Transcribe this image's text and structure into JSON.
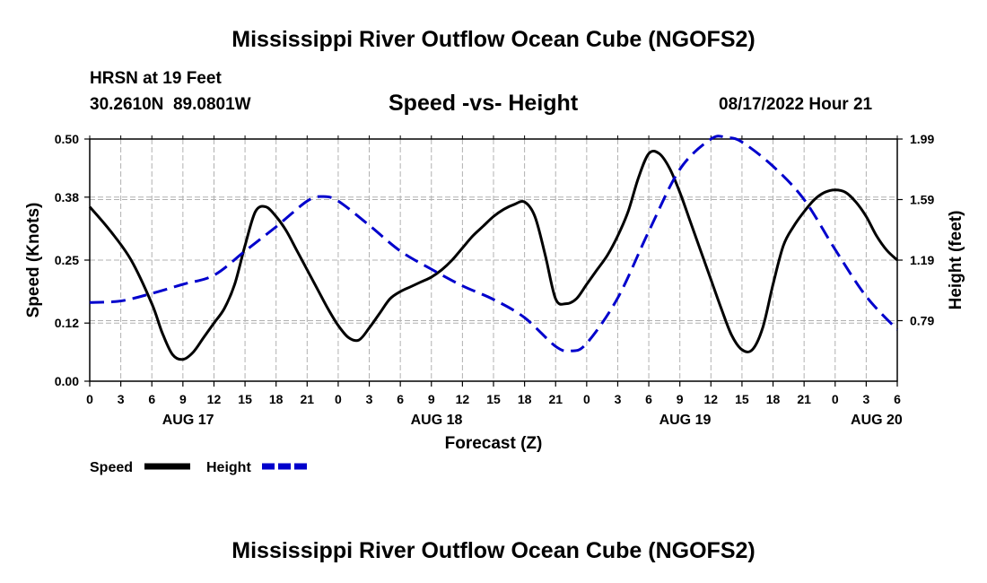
{
  "page": {
    "title_top": "Mississippi River Outflow Ocean Cube (NGOFS2)",
    "title_bottom": "Mississippi River Outflow Ocean Cube (NGOFS2)",
    "station": "HRSN at 19 Feet",
    "coords": "30.2610N  89.0801W",
    "subtitle": "Speed -vs- Height",
    "timestamp": "08/17/2022 Hour 21"
  },
  "legend": {
    "speed_label": "Speed",
    "height_label": "Height"
  },
  "colors": {
    "speed": "#000000",
    "height": "#0000cc",
    "grid": "#b0b0b0"
  },
  "chart_data": {
    "type": "line",
    "title": "Speed -vs- Height",
    "xlabel": "Forecast (Z)",
    "ylabel": "Speed (Knots)",
    "y2label": "Height (feet)",
    "xlim": [
      0,
      78
    ],
    "ylim": [
      0,
      0.5
    ],
    "y2lim": [
      0.39,
      1.99
    ],
    "x_ticks": [
      0,
      3,
      6,
      9,
      12,
      15,
      18,
      21,
      24,
      27,
      30,
      33,
      36,
      39,
      42,
      45,
      48,
      51,
      54,
      57,
      60,
      63,
      66,
      69,
      72,
      75,
      78
    ],
    "x_tick_labels": [
      "0",
      "3",
      "6",
      "9",
      "12",
      "15",
      "18",
      "21",
      "0",
      "3",
      "6",
      "9",
      "12",
      "15",
      "18",
      "21",
      "0",
      "3",
      "6",
      "9",
      "12",
      "15",
      "18",
      "21",
      "0",
      "3",
      "6"
    ],
    "y_ticks": [
      0.0,
      0.12,
      0.25,
      0.38,
      0.5
    ],
    "y_tick_labels": [
      "0.00",
      "0.12",
      "0.25",
      "0.38",
      "0.50"
    ],
    "y2_ticks": [
      0.79,
      1.19,
      1.59,
      1.99
    ],
    "y2_tick_labels": [
      "0.79",
      "1.19",
      "1.59",
      "1.99"
    ],
    "date_labels": [
      {
        "x": 9.5,
        "label": "AUG 17"
      },
      {
        "x": 33.5,
        "label": "AUG 18"
      },
      {
        "x": 57.5,
        "label": "AUG 19"
      },
      {
        "x": 76,
        "label": "AUG 20"
      }
    ],
    "series": [
      {
        "name": "Speed",
        "axis": "left",
        "style": "solid",
        "x": [
          0,
          2,
          4,
          6,
          7,
          8,
          9,
          10,
          11,
          12,
          13,
          14,
          15,
          16,
          17,
          18,
          19,
          20,
          21,
          22,
          23,
          24,
          25,
          26,
          27,
          28,
          29,
          30,
          31,
          32,
          33,
          34,
          35,
          36,
          37,
          38,
          39,
          40,
          41,
          42,
          43,
          44,
          45,
          46,
          47,
          48,
          49,
          50,
          51,
          52,
          53,
          54,
          55,
          56,
          57,
          58,
          59,
          60,
          61,
          62,
          63,
          64,
          65,
          66,
          67,
          68,
          69,
          70,
          71,
          72,
          73,
          74,
          75,
          76,
          77,
          78
        ],
        "values": [
          0.36,
          0.31,
          0.25,
          0.16,
          0.1,
          0.055,
          0.045,
          0.06,
          0.09,
          0.12,
          0.15,
          0.2,
          0.28,
          0.35,
          0.36,
          0.34,
          0.31,
          0.27,
          0.23,
          0.19,
          0.15,
          0.115,
          0.09,
          0.085,
          0.11,
          0.14,
          0.17,
          0.185,
          0.195,
          0.205,
          0.215,
          0.23,
          0.25,
          0.275,
          0.3,
          0.32,
          0.34,
          0.355,
          0.365,
          0.37,
          0.34,
          0.26,
          0.17,
          0.16,
          0.17,
          0.2,
          0.23,
          0.26,
          0.3,
          0.35,
          0.42,
          0.47,
          0.47,
          0.44,
          0.39,
          0.33,
          0.27,
          0.21,
          0.15,
          0.095,
          0.065,
          0.065,
          0.11,
          0.2,
          0.28,
          0.32,
          0.35,
          0.375,
          0.39,
          0.395,
          0.39,
          0.37,
          0.34,
          0.3,
          0.27,
          0.25
        ]
      },
      {
        "name": "Height",
        "axis": "right",
        "style": "dashed",
        "x": [
          0,
          3,
          6,
          9,
          12,
          15,
          18,
          21,
          22.5,
          24,
          27,
          30,
          33,
          36,
          39,
          42,
          45,
          46.5,
          48,
          51,
          54,
          57,
          60,
          61.5,
          63,
          66,
          69,
          72,
          75,
          78
        ],
        "values": [
          0.91,
          0.92,
          0.97,
          1.03,
          1.09,
          1.25,
          1.41,
          1.58,
          1.61,
          1.58,
          1.42,
          1.25,
          1.13,
          1.02,
          0.93,
          0.81,
          0.62,
          0.59,
          0.64,
          0.94,
          1.38,
          1.79,
          1.99,
          2.0,
          1.97,
          1.81,
          1.59,
          1.26,
          0.95,
          0.73
        ]
      }
    ]
  }
}
